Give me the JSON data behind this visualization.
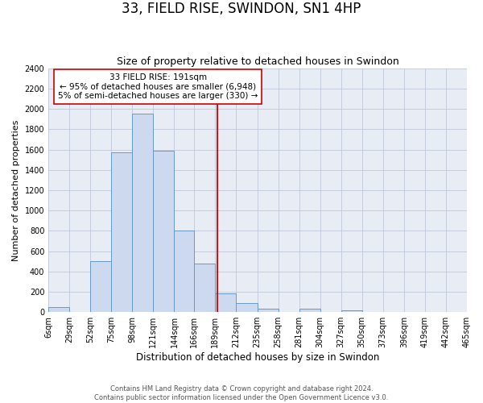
{
  "title": "33, FIELD RISE, SWINDON, SN1 4HP",
  "subtitle": "Size of property relative to detached houses in Swindon",
  "xlabel": "Distribution of detached houses by size in Swindon",
  "ylabel": "Number of detached properties",
  "bin_edges": [
    6,
    29,
    52,
    75,
    98,
    121,
    144,
    166,
    189,
    212,
    235,
    258,
    281,
    304,
    327,
    350,
    373,
    396,
    419,
    442,
    465
  ],
  "bar_heights": [
    50,
    0,
    500,
    1575,
    1950,
    1590,
    800,
    480,
    185,
    90,
    30,
    0,
    30,
    0,
    20,
    0,
    0,
    0,
    0,
    0
  ],
  "bar_facecolor": "#ccd9ef",
  "bar_edgecolor": "#6699cc",
  "vline_x": 191,
  "vline_color": "#cc0000",
  "annotation_line1": "33 FIELD RISE: 191sqm",
  "annotation_line2": "← 95% of detached houses are smaller (6,948)",
  "annotation_line3": "5% of semi-detached houses are larger (330) →",
  "annotation_fontsize": 7.5,
  "annotation_box_facecolor": "#ffffff",
  "annotation_box_edgecolor": "#cc0000",
  "ylim": [
    0,
    2400
  ],
  "yticks": [
    0,
    200,
    400,
    600,
    800,
    1000,
    1200,
    1400,
    1600,
    1800,
    2000,
    2200,
    2400
  ],
  "grid_color": "#c0c8d8",
  "background_color": "#e8ecf4",
  "footer_line1": "Contains HM Land Registry data © Crown copyright and database right 2024.",
  "footer_line2": "Contains public sector information licensed under the Open Government Licence v3.0.",
  "title_fontsize": 12,
  "subtitle_fontsize": 9,
  "xlabel_fontsize": 8.5,
  "ylabel_fontsize": 8,
  "tick_label_fontsize": 7,
  "footer_fontsize": 6
}
